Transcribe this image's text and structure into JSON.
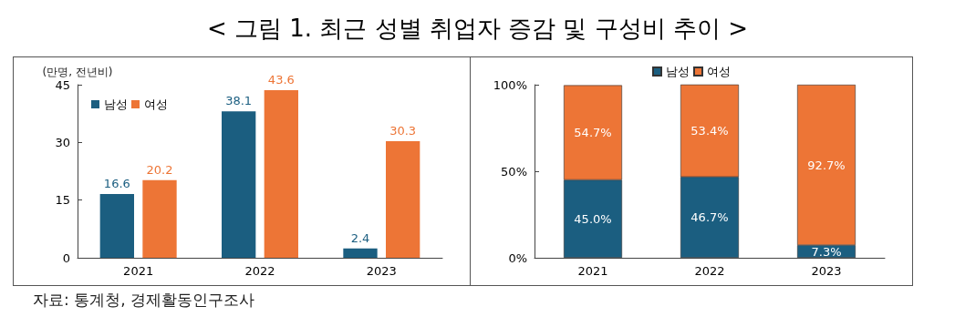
{
  "chart_data": [
    {
      "type": "bar",
      "title": "< 그림 1. 최근 성별 취업자 증감 및 구성비 추이 >",
      "ylabel": "(만명, 전년비)",
      "categories": [
        "2021",
        "2022",
        "2023"
      ],
      "series": [
        {
          "name": "남성",
          "color": "#1b5e80",
          "values": [
            16.6,
            38.1,
            2.4
          ]
        },
        {
          "name": "여성",
          "color": "#ed7536",
          "values": [
            20.2,
            43.6,
            30.3
          ]
        }
      ],
      "ylim": [
        0,
        45
      ],
      "yticks": [
        0,
        15,
        30,
        45
      ],
      "data_labels": true,
      "legend": "top left",
      "annotations": [
        "자료: 통계청, 경제활동인구조사"
      ]
    },
    {
      "type": "bar",
      "stacked": true,
      "categories": [
        "2021",
        "2022",
        "2023"
      ],
      "series": [
        {
          "name": "남성",
          "color": "#1b5e80",
          "values": [
            45.0,
            46.7,
            7.3
          ],
          "value_labels": [
            "45.0%",
            "46.7%",
            "7.3%"
          ]
        },
        {
          "name": "여성",
          "color": "#ed7536",
          "values": [
            54.7,
            53.4,
            92.7
          ],
          "value_labels": [
            "54.7%",
            "53.4%",
            "92.7%"
          ]
        }
      ],
      "ylim": [
        0,
        100
      ],
      "yticks": [
        {
          "value": 0,
          "label": "0%"
        },
        {
          "value": 50,
          "label": "50%"
        },
        {
          "value": 100,
          "label": "100%"
        }
      ],
      "legend": "top"
    }
  ]
}
